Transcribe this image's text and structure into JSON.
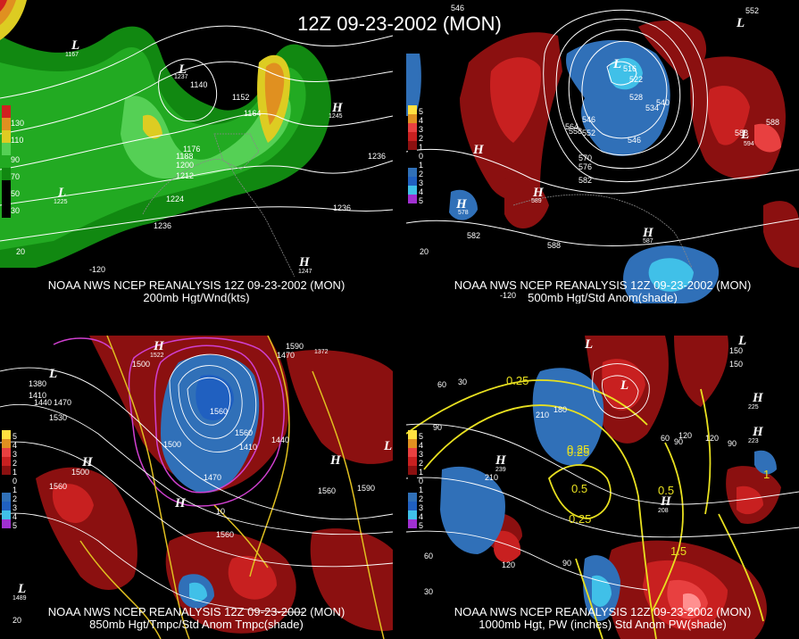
{
  "title": "12Z 09-23-2002 (MON)",
  "panels": [
    {
      "id": "p1",
      "caption_line1": "NOAA NWS NCEP REANALYSIS 12Z 09-23-2002 (MON)",
      "caption_line2": "200mb Hgt/Wnd(kts)",
      "legend_labels": [
        "130",
        "110",
        "90",
        "70",
        "50",
        "30"
      ],
      "contour_labels": [
        "1140",
        "1152",
        "1164",
        "1176",
        "1188",
        "1200",
        "1212",
        "1224",
        "1236",
        "1236",
        "1236",
        "1245",
        "1225",
        "1167",
        "1237",
        "1247",
        "20",
        "-120"
      ],
      "pressure_letters": [
        "L",
        "L",
        "L",
        "H",
        "H"
      ]
    },
    {
      "id": "p2",
      "caption_line1": "NOAA NWS NCEP REANALYSIS 12Z 09-23-2002 (MON)",
      "caption_line2": "500mb Hgt/Std Anom(shade)",
      "legend_labels": [
        "5",
        "4",
        "3",
        "2",
        "1",
        "0",
        "1",
        "2",
        "3",
        "4",
        "5"
      ],
      "contour_labels": [
        "546",
        "552",
        "558",
        "564",
        "570",
        "576",
        "582",
        "588",
        "516",
        "522",
        "528",
        "534",
        "540",
        "546",
        "552",
        "588",
        "588",
        "582",
        "578",
        "589",
        "587",
        "594",
        "546",
        "-120",
        "20"
      ],
      "pressure_letters": [
        "L",
        "L",
        "H",
        "H",
        "H",
        "L",
        "H"
      ]
    },
    {
      "id": "p3",
      "caption_line1": "NOAA NWS NCEP REANALYSIS 12Z 09-23-2002 (MON)",
      "caption_line2": "850mb Hgt/Tmpc/Std Anom Tmpc(shade)",
      "legend_labels": [
        "5",
        "4",
        "3",
        "2",
        "1",
        "0",
        "1",
        "2",
        "3",
        "4",
        "5"
      ],
      "contour_labels": [
        "1380",
        "1410",
        "1440",
        "1470",
        "1500",
        "1530",
        "1560",
        "1590",
        "1410",
        "1440",
        "1470",
        "1560",
        "1560",
        "1500",
        "1470",
        "1560",
        "1590",
        "1560",
        "1500",
        "10",
        "20",
        "1489",
        "1522",
        "1372"
      ],
      "pressure_letters": [
        "L",
        "L",
        "H",
        "H",
        "H",
        "H",
        "L"
      ]
    },
    {
      "id": "p4",
      "caption_line1": "NOAA NWS NCEP REANALYSIS 12Z 09-23-2002 (MON)",
      "caption_line2": "1000mb Hgt, PW (inches) Std Anom PW(shade)",
      "legend_labels": [
        "5",
        "4",
        "3",
        "2",
        "1",
        "0",
        "1",
        "2",
        "3",
        "4",
        "5"
      ],
      "contour_labels": [
        "60",
        "90",
        "120",
        "150",
        "180",
        "210",
        "30",
        "60",
        "90",
        "120",
        "150",
        "0.25",
        "0.25",
        "0.5",
        "0.5",
        "0.25",
        "0.25",
        "1.5",
        "1",
        "210",
        "120",
        "90",
        "60",
        "30",
        "225",
        "223",
        "239",
        "208",
        "90"
      ],
      "pressure_letters": [
        "L",
        "L",
        "H",
        "H",
        "H",
        "H",
        "L"
      ]
    }
  ],
  "colors": {
    "wind_light": "#55d055",
    "wind_mid": "#22aa22",
    "wind_dark": "#118811",
    "wind_yellow": "#ddcc22",
    "wind_orange": "#e09020",
    "wind_red": "#d02020",
    "anom_red_dark": "#8b1010",
    "anom_red": "#c82020",
    "anom_red_light": "#e84040",
    "anom_blue": "#3070b8",
    "anom_blue_light": "#40c0e8",
    "contour": "#ffffff",
    "temp_contour": "#e0c020",
    "magenta": "#d040d0",
    "coast": "#888888"
  }
}
